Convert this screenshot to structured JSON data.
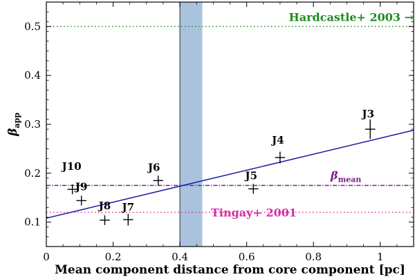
{
  "chart_data": {
    "type": "scatter",
    "xlabel": "Mean component distance from core component [pc]",
    "ylabel_main": "β",
    "ylabel_sub": "app",
    "xlim": [
      0,
      1.1
    ],
    "ylim": [
      0.05,
      0.55
    ],
    "xticks": [
      0,
      0.2,
      0.4,
      0.6,
      0.8,
      1.0
    ],
    "xtick_labels": [
      "0",
      "0.2",
      "0.4",
      "0.6",
      "0.8",
      "1"
    ],
    "yticks": [
      0.1,
      0.2,
      0.3,
      0.4,
      0.5
    ],
    "ytick_labels": [
      "0.1",
      "0.2",
      "0.3",
      "0.4",
      "0.5"
    ],
    "points": [
      {
        "label": "J3",
        "x": 0.97,
        "y": 0.29,
        "xerr": 0.015,
        "yerr": 0.02
      },
      {
        "label": "J4",
        "x": 0.7,
        "y": 0.232,
        "xerr": 0.015,
        "yerr": 0.012
      },
      {
        "label": "J5",
        "x": 0.62,
        "y": 0.168,
        "xerr": 0.015,
        "yerr": 0.01
      },
      {
        "label": "J6",
        "x": 0.335,
        "y": 0.185,
        "xerr": 0.015,
        "yerr": 0.01
      },
      {
        "label": "J7",
        "x": 0.245,
        "y": 0.105,
        "xerr": 0.015,
        "yerr": 0.012
      },
      {
        "label": "J8",
        "x": 0.175,
        "y": 0.104,
        "xerr": 0.015,
        "yerr": 0.01
      },
      {
        "label": "J9",
        "x": 0.105,
        "y": 0.144,
        "xerr": 0.015,
        "yerr": 0.01
      },
      {
        "label": "J10",
        "x": 0.078,
        "y": 0.167,
        "xerr": 0.015,
        "yerr": 0.01
      }
    ],
    "fit_line": {
      "x": [
        0,
        1.1
      ],
      "y": [
        0.108,
        0.288
      ],
      "color": "#1a1aa8"
    },
    "mean_line": {
      "y": 0.175,
      "label_main": "β",
      "label_sub": "mean",
      "color": "#7a1a8c"
    },
    "reference_lines": [
      {
        "y": 0.5,
        "label": "Hardcastle+ 2003 →",
        "color": "#1f8a1f"
      },
      {
        "y": 0.12,
        "label": "Tingay+ 2001",
        "color": "#d42f9e"
      }
    ],
    "shaded_band": {
      "x": [
        0.4,
        0.467
      ],
      "color": "#a4c0dc"
    },
    "vertical_line": {
      "x": 0.4,
      "color": "#555555"
    }
  }
}
